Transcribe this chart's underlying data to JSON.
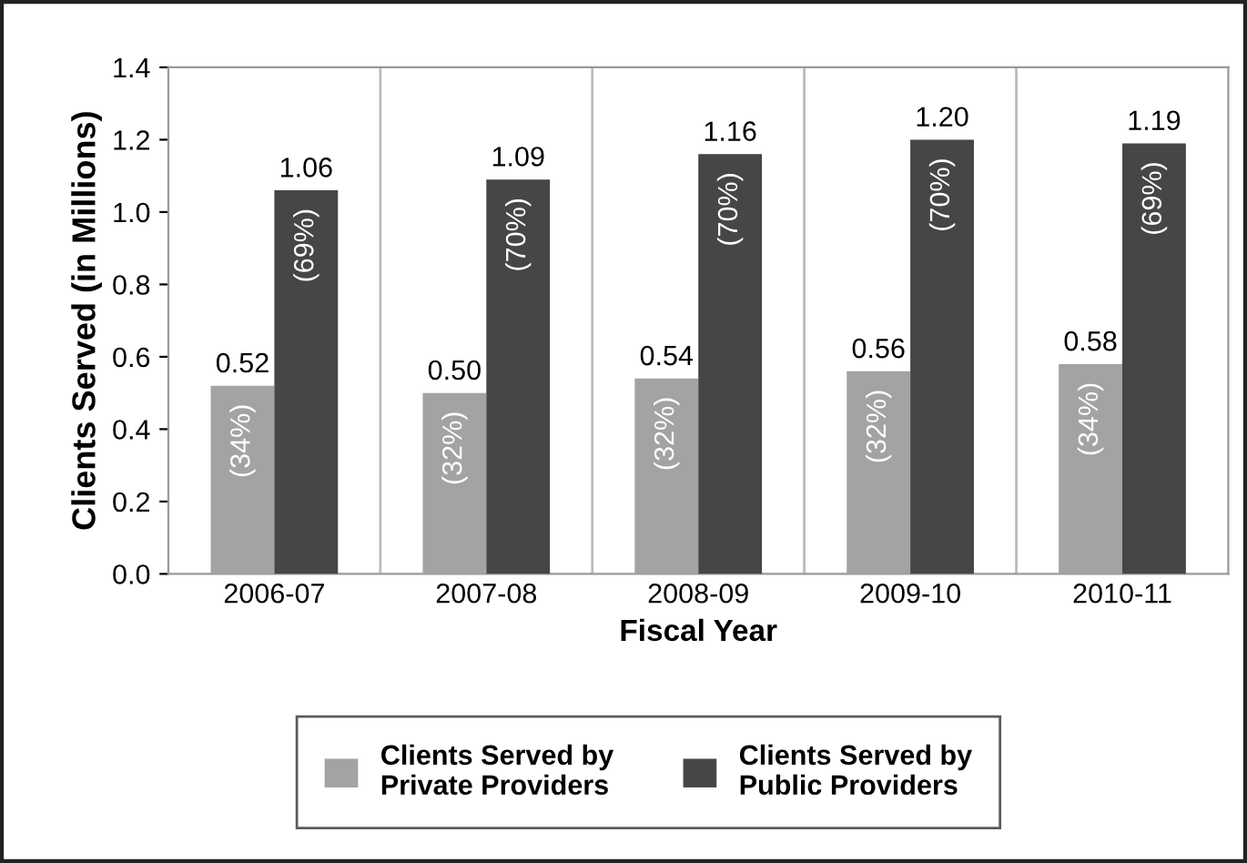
{
  "chart_data": {
    "type": "bar",
    "xlabel": "Fiscal Year",
    "ylabel": "Clients Served (in Millions)",
    "categories": [
      "2006-07",
      "2007-08",
      "2008-09",
      "2009-10",
      "2010-11"
    ],
    "series": [
      {
        "name": "Clients Served by\nPrivate Providers",
        "color": "#a3a3a3",
        "values": [
          0.52,
          0.5,
          0.54,
          0.56,
          0.58
        ],
        "value_labels": [
          "0.52",
          "0.50",
          "0.54",
          "0.56",
          "0.58"
        ]
      },
      {
        "name": "Clients Served by\nPublic Providers",
        "color": "#464646",
        "values": [
          1.06,
          1.09,
          1.16,
          1.2,
          1.19
        ],
        "value_labels": [
          "1.06",
          "1.09",
          "1.16",
          "1.20",
          "1.19"
        ]
      }
    ],
    "annotations": [
      {
        "text": "(34%)",
        "x": "2006-07",
        "y": 0.52
      },
      {
        "text": "(32%)",
        "x": "2007-08",
        "y": 0.5
      },
      {
        "text": "(32%)",
        "x": "2008-09",
        "y": 0.54
      },
      {
        "text": "(32%)",
        "x": "2009-10",
        "y": 0.56
      },
      {
        "text": "(34%)",
        "x": "2010-11",
        "y": 0.58
      },
      {
        "text": "(69%)",
        "x": "2006-07",
        "y": 1.06
      },
      {
        "text": "(70%)",
        "x": "2007-08",
        "y": 1.09
      },
      {
        "text": "(70%)",
        "x": "2008-09",
        "y": 1.16
      },
      {
        "text": "(70%)",
        "x": "2009-10",
        "y": 1.2
      },
      {
        "text": "(69%)",
        "x": "2010-11",
        "y": 1.19
      }
    ],
    "ylim": [
      0,
      1.4
    ],
    "yticks": [
      {
        "value": 0,
        "label": "0.0"
      },
      {
        "value": 0.2,
        "label": "0.2"
      },
      {
        "value": 0.4,
        "label": "0.4"
      },
      {
        "value": 0.6,
        "label": "0.6"
      },
      {
        "value": 0.8,
        "label": "0.8"
      },
      {
        "value": 1.0,
        "label": "1.0"
      },
      {
        "value": 1.2,
        "label": "1.2"
      },
      {
        "value": 1.4,
        "label": "1.4"
      }
    ],
    "grid": "x",
    "legend": "bottom"
  }
}
